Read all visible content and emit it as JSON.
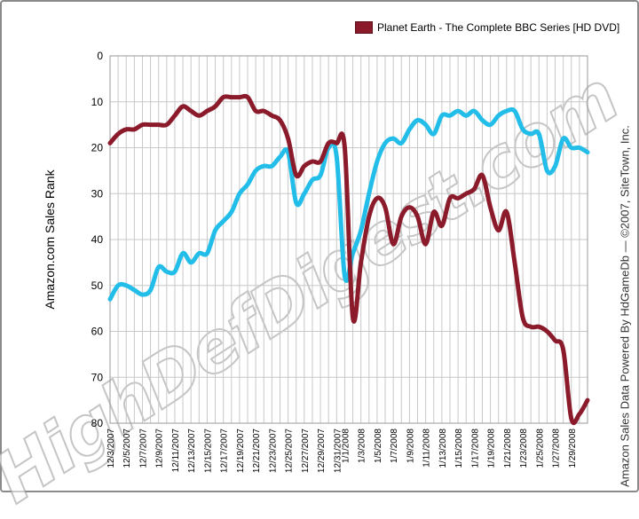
{
  "chart_data": {
    "type": "line",
    "title": "",
    "xlabel": "",
    "ylabel": "Amazon.com Sales Rank",
    "ylim": [
      0,
      80
    ],
    "y_inverted": false,
    "yticks": [
      0,
      10,
      20,
      30,
      40,
      50,
      60,
      70,
      80
    ],
    "grid": true,
    "legend_position": "top-right",
    "x_tick_labels": [
      "12/3/2007",
      "12/5/2007",
      "12/7/2007",
      "12/9/2007",
      "12/11/2007",
      "12/13/2007",
      "12/15/2007",
      "12/17/2007",
      "12/19/2007",
      "12/21/2007",
      "12/23/2007",
      "12/25/2007",
      "12/27/2007",
      "12/29/2007",
      "12/31/2007",
      "1/1/2008",
      "1/3/2008",
      "1/5/2008",
      "1/7/2008",
      "1/9/2008",
      "1/11/2008",
      "1/13/2008",
      "1/15/2008",
      "1/17/2008",
      "1/19/2008",
      "1/21/2008",
      "1/23/2008",
      "1/25/2008",
      "1/27/2008",
      "1/29/2008"
    ],
    "series": [
      {
        "name": "Planet Earth - The Complete BBC Series [HD DVD]",
        "color": "#8b1a2b",
        "x": [
          "12/3/2007",
          "12/4/2007",
          "12/5/2007",
          "12/6/2007",
          "12/7/2007",
          "12/8/2007",
          "12/9/2007",
          "12/10/2007",
          "12/11/2007",
          "12/12/2007",
          "12/13/2007",
          "12/14/2007",
          "12/15/2007",
          "12/16/2007",
          "12/17/2007",
          "12/18/2007",
          "12/19/2007",
          "12/20/2007",
          "12/21/2007",
          "12/22/2007",
          "12/23/2007",
          "12/24/2007",
          "12/25/2007",
          "12/26/2007",
          "12/27/2007",
          "12/28/2007",
          "12/29/2007",
          "12/30/2007",
          "12/31/2007",
          "1/1/2008",
          "1/2/2008",
          "1/3/2008",
          "1/4/2008",
          "1/5/2008",
          "1/6/2008",
          "1/7/2008",
          "1/8/2008",
          "1/9/2008",
          "1/10/2008",
          "1/11/2008",
          "1/12/2008",
          "1/13/2008",
          "1/14/2008",
          "1/15/2008",
          "1/16/2008",
          "1/17/2008",
          "1/18/2008",
          "1/19/2008",
          "1/20/2008",
          "1/21/2008",
          "1/22/2008",
          "1/23/2008",
          "1/24/2008",
          "1/25/2008",
          "1/26/2008",
          "1/27/2008",
          "1/28/2008",
          "1/29/2008",
          "1/30/2008",
          "1/31/2008"
        ],
        "values": [
          19,
          17,
          16,
          16,
          15,
          15,
          15,
          15,
          13,
          11,
          12,
          13,
          12,
          11,
          9,
          9,
          9,
          9,
          12,
          12,
          13,
          14,
          18,
          26,
          24,
          23,
          23,
          19,
          19,
          20,
          57,
          45,
          35,
          31,
          33,
          41,
          35,
          33,
          35,
          41,
          34,
          37,
          31,
          31,
          30,
          29,
          26,
          33,
          38,
          34,
          45,
          57,
          59,
          59,
          60,
          62,
          64,
          79,
          78,
          75
        ]
      },
      {
        "name": "",
        "color": "#22bde8",
        "x": [
          "12/3/2007",
          "12/4/2007",
          "12/5/2007",
          "12/6/2007",
          "12/7/2007",
          "12/8/2007",
          "12/9/2007",
          "12/10/2007",
          "12/11/2007",
          "12/12/2007",
          "12/13/2007",
          "12/14/2007",
          "12/15/2007",
          "12/16/2007",
          "12/17/2007",
          "12/18/2007",
          "12/19/2007",
          "12/20/2007",
          "12/21/2007",
          "12/22/2007",
          "12/23/2007",
          "12/24/2007",
          "12/25/2007",
          "12/26/2007",
          "12/27/2007",
          "12/28/2007",
          "12/29/2007",
          "12/30/2007",
          "12/31/2007",
          "1/1/2008",
          "1/2/2008",
          "1/3/2008",
          "1/4/2008",
          "1/5/2008",
          "1/6/2008",
          "1/7/2008",
          "1/8/2008",
          "1/9/2008",
          "1/10/2008",
          "1/11/2008",
          "1/12/2008",
          "1/13/2008",
          "1/14/2008",
          "1/15/2008",
          "1/16/2008",
          "1/17/2008",
          "1/18/2008",
          "1/19/2008",
          "1/20/2008",
          "1/21/2008",
          "1/22/2008",
          "1/23/2008",
          "1/24/2008",
          "1/25/2008",
          "1/26/2008",
          "1/27/2008",
          "1/28/2008",
          "1/29/2008",
          "1/30/2008",
          "1/31/2008"
        ],
        "values": [
          53,
          50,
          50,
          51,
          52,
          51,
          46,
          47,
          47,
          43,
          45,
          43,
          43,
          38,
          36,
          34,
          30,
          28,
          25,
          24,
          24,
          22,
          21,
          32,
          30,
          27,
          26,
          20,
          22,
          48,
          43,
          38,
          30,
          23,
          19,
          18,
          19,
          16,
          14,
          15,
          17,
          13,
          13,
          12,
          13,
          12,
          14,
          15,
          13,
          12,
          12,
          16,
          17,
          17,
          25,
          24,
          18,
          20,
          20,
          21
        ]
      }
    ]
  },
  "legend": {
    "label": "Planet Earth - The Complete BBC Series [HD DVD]"
  },
  "ylabel": "Amazon.com Sales Rank",
  "credit": "Amazon Sales Data Powered By HdGameDb — ©2007, SiteTown, Inc.",
  "watermark": "HighDefDigest.com"
}
